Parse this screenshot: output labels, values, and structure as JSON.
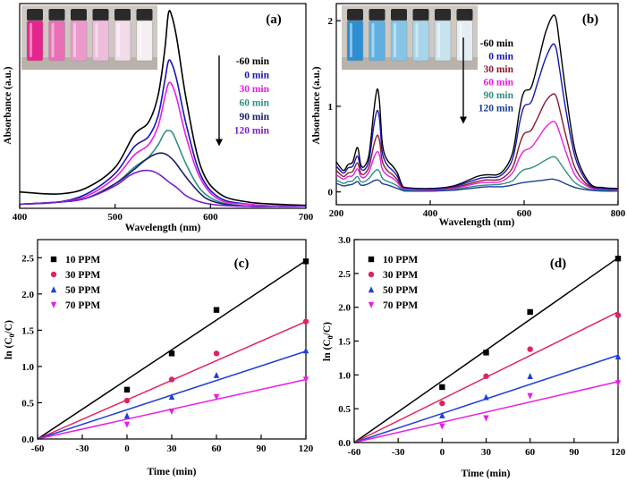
{
  "chart_data": [
    {
      "id": "a",
      "type": "line",
      "panel_label": "(a)",
      "xlabel": "Wavelength (nm)",
      "ylabel": "Absorbance (a.u.)",
      "xlim": [
        400,
        700
      ],
      "ylim": [
        0,
        1
      ],
      "xticks": [
        400,
        500,
        600,
        700
      ],
      "show_yticks": false,
      "legend_title": "",
      "legend_entries": [
        "-60 min",
        "0 min",
        "30 min",
        "60 min",
        "90 min",
        "120 min"
      ],
      "legend_arrow": true,
      "inset": "photo of six vials, pink fading to clear",
      "series": [
        {
          "name": "-60 min",
          "color": "#000000",
          "x": [
            400,
            440,
            470,
            500,
            520,
            535,
            545,
            552,
            556,
            560,
            565,
            575,
            590,
            610,
            640,
            670,
            700
          ],
          "y": [
            0.08,
            0.07,
            0.1,
            0.2,
            0.36,
            0.42,
            0.55,
            0.77,
            0.955,
            0.93,
            0.82,
            0.52,
            0.2,
            0.07,
            0.03,
            0.02,
            0.015
          ]
        },
        {
          "name": "0 min",
          "color": "#1515b8",
          "x": [
            400,
            440,
            470,
            500,
            520,
            535,
            545,
            552,
            556,
            560,
            565,
            575,
            590,
            610,
            640,
            670,
            700
          ],
          "y": [
            0.02,
            0.03,
            0.07,
            0.17,
            0.3,
            0.35,
            0.45,
            0.62,
            0.72,
            0.7,
            0.62,
            0.4,
            0.16,
            0.05,
            0.02,
            0.01,
            0.01
          ]
        },
        {
          "name": "30 min",
          "color": "#e81ee3",
          "x": [
            400,
            440,
            470,
            500,
            520,
            535,
            545,
            552,
            556,
            560,
            565,
            575,
            590,
            610,
            640,
            670,
            700
          ],
          "y": [
            0.02,
            0.03,
            0.06,
            0.15,
            0.26,
            0.31,
            0.4,
            0.54,
            0.61,
            0.6,
            0.53,
            0.34,
            0.14,
            0.04,
            0.02,
            0.01,
            0.01
          ]
        },
        {
          "name": "60 min",
          "color": "#2f8f7f",
          "x": [
            400,
            440,
            470,
            500,
            520,
            535,
            545,
            552,
            556,
            560,
            565,
            575,
            590,
            610,
            640,
            670,
            700
          ],
          "y": [
            0.02,
            0.03,
            0.05,
            0.12,
            0.2,
            0.25,
            0.31,
            0.37,
            0.38,
            0.37,
            0.32,
            0.21,
            0.09,
            0.03,
            0.01,
            0.01,
            0.01
          ]
        },
        {
          "name": "90 min",
          "color": "#1c1c70",
          "x": [
            400,
            440,
            470,
            500,
            520,
            530,
            540,
            548,
            555,
            562,
            570,
            580,
            595,
            615,
            640,
            670,
            700
          ],
          "y": [
            0.02,
            0.03,
            0.05,
            0.12,
            0.19,
            0.23,
            0.26,
            0.27,
            0.26,
            0.23,
            0.18,
            0.12,
            0.05,
            0.02,
            0.01,
            0.01,
            0.01
          ]
        },
        {
          "name": "120 min",
          "color": "#7a1fc9",
          "x": [
            400,
            440,
            470,
            500,
            515,
            525,
            533,
            540,
            548,
            556,
            565,
            575,
            590,
            610,
            640,
            670,
            700
          ],
          "y": [
            0.02,
            0.03,
            0.05,
            0.11,
            0.16,
            0.18,
            0.185,
            0.18,
            0.16,
            0.13,
            0.1,
            0.06,
            0.03,
            0.015,
            0.01,
            0.01,
            0.01
          ]
        }
      ]
    },
    {
      "id": "b",
      "type": "line",
      "panel_label": "(b)",
      "xlabel": "Wavelength (nm)",
      "ylabel": "Absorbance (a.u.)",
      "xlim": [
        200,
        800
      ],
      "ylim": [
        -0.15,
        2.2
      ],
      "xticks": [
        200,
        400,
        600,
        800
      ],
      "yticks": [
        0,
        1,
        2
      ],
      "legend_title": "",
      "legend_entries": [
        "-60 min",
        "0 min",
        "30 min",
        "60 min",
        "90 min",
        "120 min"
      ],
      "legend_arrow": true,
      "inset": "photo of six vials, blue fading to clear",
      "series": [
        {
          "name": "-60 min",
          "color": "#000000",
          "x": [
            200,
            215,
            225,
            235,
            245,
            252,
            260,
            270,
            280,
            287,
            292,
            297,
            302,
            310,
            320,
            330,
            340,
            350,
            400,
            450,
            500,
            520,
            550,
            575,
            590,
            600,
            615,
            630,
            645,
            660,
            668,
            675,
            690,
            710,
            740,
            770,
            800
          ],
          "y": [
            0.35,
            0.25,
            0.32,
            0.35,
            0.52,
            0.32,
            0.3,
            0.45,
            0.95,
            1.2,
            1.05,
            0.62,
            0.45,
            0.36,
            0.3,
            0.22,
            0.08,
            0.05,
            0.04,
            0.07,
            0.18,
            0.2,
            0.22,
            0.45,
            0.95,
            1.17,
            1.22,
            1.52,
            1.85,
            2.05,
            2.02,
            1.75,
            1.12,
            0.45,
            0.1,
            0.05,
            0.04
          ]
        },
        {
          "name": "0 min",
          "color": "#1515b8",
          "x": [
            200,
            215,
            225,
            235,
            245,
            252,
            260,
            270,
            280,
            287,
            292,
            297,
            302,
            310,
            320,
            330,
            340,
            350,
            400,
            450,
            500,
            520,
            550,
            575,
            590,
            600,
            615,
            630,
            645,
            660,
            668,
            675,
            690,
            710,
            740,
            770,
            800
          ],
          "y": [
            0.3,
            0.22,
            0.28,
            0.3,
            0.42,
            0.28,
            0.26,
            0.38,
            0.78,
            0.95,
            0.85,
            0.5,
            0.38,
            0.3,
            0.25,
            0.18,
            0.06,
            0.04,
            0.03,
            0.06,
            0.15,
            0.17,
            0.19,
            0.38,
            0.8,
            1.0,
            1.05,
            1.3,
            1.55,
            1.72,
            1.68,
            1.45,
            0.92,
            0.38,
            0.08,
            0.04,
            0.03
          ]
        },
        {
          "name": "30 min",
          "color": "#8b1a2e",
          "x": [
            200,
            215,
            225,
            235,
            245,
            252,
            260,
            270,
            280,
            287,
            292,
            297,
            302,
            310,
            320,
            330,
            340,
            350,
            400,
            450,
            500,
            520,
            550,
            575,
            590,
            600,
            615,
            630,
            645,
            660,
            668,
            675,
            690,
            710,
            740,
            770,
            800
          ],
          "y": [
            0.25,
            0.18,
            0.22,
            0.24,
            0.34,
            0.22,
            0.21,
            0.3,
            0.55,
            0.66,
            0.6,
            0.38,
            0.3,
            0.24,
            0.2,
            0.14,
            0.05,
            0.03,
            0.02,
            0.05,
            0.12,
            0.14,
            0.15,
            0.28,
            0.55,
            0.68,
            0.72,
            0.88,
            1.05,
            1.14,
            1.12,
            0.98,
            0.63,
            0.26,
            0.06,
            0.03,
            0.02
          ]
        },
        {
          "name": "60 min",
          "color": "#e81ee3",
          "x": [
            200,
            215,
            225,
            235,
            245,
            252,
            260,
            270,
            280,
            287,
            292,
            297,
            302,
            310,
            320,
            330,
            340,
            350,
            400,
            450,
            500,
            520,
            550,
            575,
            590,
            600,
            615,
            630,
            645,
            660,
            668,
            675,
            690,
            710,
            740,
            770,
            800
          ],
          "y": [
            0.2,
            0.15,
            0.18,
            0.19,
            0.27,
            0.18,
            0.17,
            0.24,
            0.4,
            0.47,
            0.43,
            0.28,
            0.23,
            0.19,
            0.16,
            0.11,
            0.04,
            0.03,
            0.02,
            0.04,
            0.1,
            0.11,
            0.12,
            0.22,
            0.4,
            0.48,
            0.52,
            0.63,
            0.75,
            0.82,
            0.8,
            0.7,
            0.45,
            0.18,
            0.05,
            0.02,
            0.02
          ]
        },
        {
          "name": "90 min",
          "color": "#2f8f7f",
          "x": [
            200,
            215,
            225,
            235,
            245,
            252,
            260,
            270,
            280,
            287,
            292,
            297,
            302,
            310,
            320,
            330,
            340,
            350,
            400,
            450,
            500,
            520,
            550,
            575,
            590,
            600,
            615,
            630,
            645,
            660,
            668,
            675,
            690,
            710,
            740,
            770,
            800
          ],
          "y": [
            0.14,
            0.1,
            0.12,
            0.13,
            0.18,
            0.12,
            0.12,
            0.16,
            0.23,
            0.26,
            0.24,
            0.17,
            0.14,
            0.12,
            0.1,
            0.07,
            0.03,
            0.02,
            0.01,
            0.03,
            0.07,
            0.08,
            0.09,
            0.13,
            0.22,
            0.26,
            0.28,
            0.32,
            0.37,
            0.41,
            0.4,
            0.35,
            0.23,
            0.1,
            0.03,
            0.02,
            0.01
          ]
        },
        {
          "name": "120 min",
          "color": "#1a3d8f",
          "x": [
            200,
            215,
            225,
            235,
            245,
            252,
            260,
            270,
            280,
            287,
            292,
            297,
            302,
            310,
            320,
            330,
            340,
            350,
            400,
            450,
            500,
            520,
            550,
            575,
            590,
            600,
            615,
            630,
            645,
            660,
            668,
            675,
            690,
            710,
            740,
            770,
            800
          ],
          "y": [
            0.1,
            0.07,
            0.08,
            0.09,
            0.12,
            0.08,
            0.08,
            0.1,
            0.13,
            0.14,
            0.13,
            0.1,
            0.09,
            0.08,
            0.06,
            0.04,
            0.02,
            0.01,
            0.01,
            0.02,
            0.05,
            0.06,
            0.06,
            0.08,
            0.1,
            0.11,
            0.12,
            0.13,
            0.14,
            0.15,
            0.14,
            0.13,
            0.09,
            0.05,
            0.02,
            0.01,
            0.01
          ]
        }
      ]
    },
    {
      "id": "c",
      "type": "scatter",
      "panel_label": "(c)",
      "xlabel": "Time (min)",
      "ylabel": "ln (C",
      "ylabel_sub": "0",
      "ylabel_tail": "/C)",
      "xlim": [
        -60,
        120
      ],
      "ylim": [
        0,
        2.75
      ],
      "xticks": [
        -60,
        -30,
        0,
        30,
        60,
        90,
        120
      ],
      "yticks": [
        0.0,
        0.5,
        1.0,
        1.5,
        2.0,
        2.5
      ],
      "ytick_labels": [
        "0.0",
        "0.5",
        "1.0",
        "1.5",
        "2.0",
        "2.5"
      ],
      "x": [
        0,
        30,
        60,
        120
      ],
      "series": [
        {
          "name": "10 PPM",
          "color": "#000000",
          "marker": "square",
          "values": [
            0.68,
            1.18,
            1.78,
            2.45
          ],
          "fit": {
            "x0": -60,
            "y0": 0,
            "x1": 120,
            "y1": 2.46
          }
        },
        {
          "name": "30 PPM",
          "color": "#e0245e",
          "marker": "circle",
          "values": [
            0.53,
            0.82,
            1.18,
            1.62
          ],
          "fit": {
            "x0": -60,
            "y0": 0,
            "x1": 120,
            "y1": 1.62
          }
        },
        {
          "name": "50 PPM",
          "color": "#1f3fd8",
          "marker": "triangle-up",
          "values": [
            0.32,
            0.58,
            0.88,
            1.22
          ],
          "fit": {
            "x0": -60,
            "y0": 0,
            "x1": 120,
            "y1": 1.21
          }
        },
        {
          "name": "70 PPM",
          "color": "#e81ee3",
          "marker": "triangle-down",
          "values": [
            0.2,
            0.38,
            0.58,
            0.82
          ],
          "fit": {
            "x0": -60,
            "y0": 0,
            "x1": 120,
            "y1": 0.82
          }
        }
      ]
    },
    {
      "id": "d",
      "type": "scatter",
      "panel_label": "(d)",
      "xlabel": "Time (min)",
      "ylabel": "ln (C",
      "ylabel_sub": "0",
      "ylabel_tail": "/C)",
      "xlim": [
        -60,
        120
      ],
      "ylim": [
        0,
        3.0
      ],
      "xticks": [
        -60,
        -30,
        0,
        30,
        60,
        90,
        120
      ],
      "yticks": [
        0.0,
        0.5,
        1.0,
        1.5,
        2.0,
        2.5,
        3.0
      ],
      "ytick_labels": [
        "0.0",
        "0.5",
        "1.0",
        "1.5",
        "2.0",
        "2.5",
        "3.0"
      ],
      "x": [
        0,
        30,
        60,
        120
      ],
      "series": [
        {
          "name": "10 PPM",
          "color": "#000000",
          "marker": "square",
          "values": [
            0.82,
            1.33,
            1.93,
            2.72
          ],
          "fit": {
            "x0": -60,
            "y0": 0,
            "x1": 120,
            "y1": 2.73
          }
        },
        {
          "name": "30 PPM",
          "color": "#e0245e",
          "marker": "circle",
          "values": [
            0.58,
            0.98,
            1.38,
            1.88
          ],
          "fit": {
            "x0": -60,
            "y0": 0,
            "x1": 120,
            "y1": 1.93
          }
        },
        {
          "name": "50 PPM",
          "color": "#1f3fd8",
          "marker": "triangle-up",
          "values": [
            0.4,
            0.67,
            0.98,
            1.27
          ],
          "fit": {
            "x0": -60,
            "y0": 0,
            "x1": 120,
            "y1": 1.29
          }
        },
        {
          "name": "70 PPM",
          "color": "#e81ee3",
          "marker": "triangle-down",
          "values": [
            0.24,
            0.36,
            0.69,
            0.88
          ],
          "fit": {
            "x0": -60,
            "y0": 0,
            "x1": 120,
            "y1": 0.9
          }
        }
      ]
    }
  ],
  "vials_a": {
    "colors": [
      "#e6258c",
      "#e86fb5",
      "#eb9acb",
      "#efbddc",
      "#f3dcea",
      "#f5eef2"
    ]
  },
  "vials_b": {
    "colors": [
      "#2d8fd1",
      "#5fb0e0",
      "#86c4e6",
      "#a7d5ea",
      "#c9e3ee",
      "#e4eef2"
    ]
  }
}
